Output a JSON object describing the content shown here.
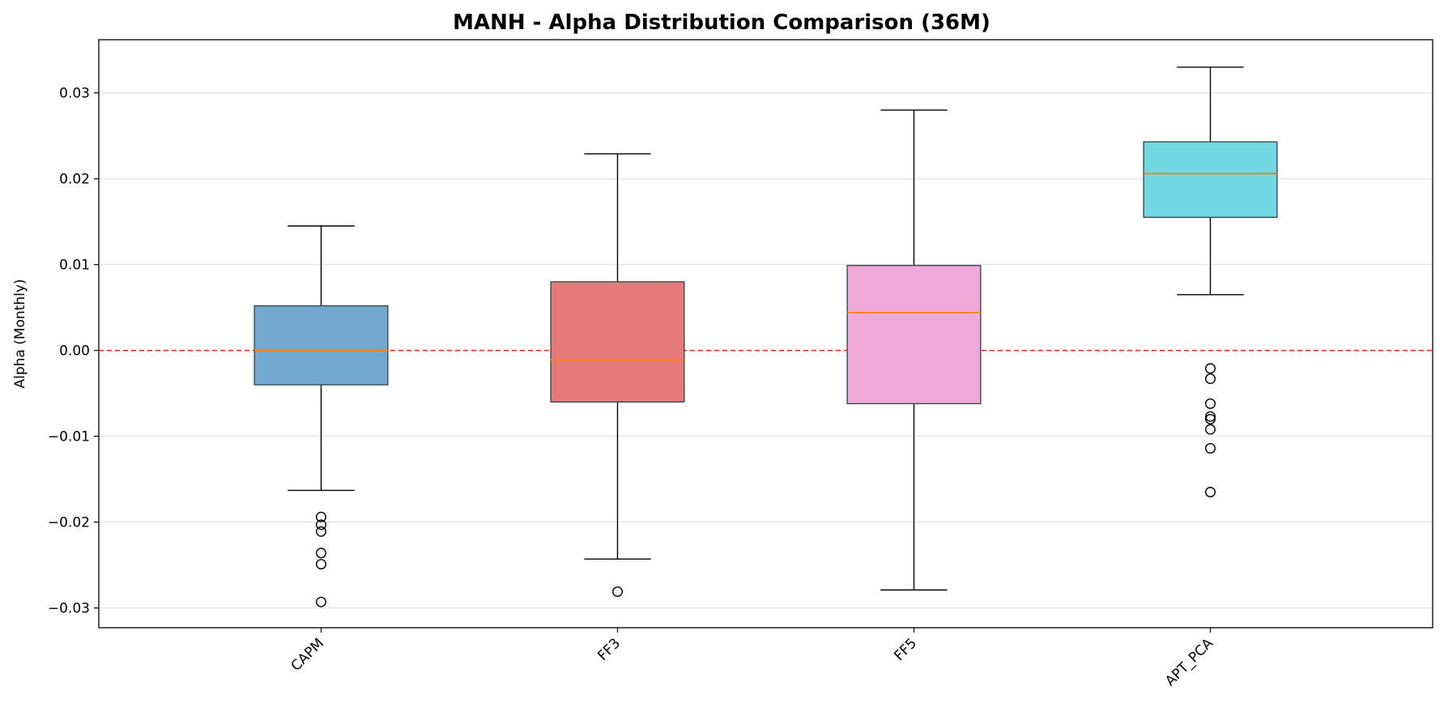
{
  "chart_data": {
    "type": "boxplot",
    "title": "MANH - Alpha Distribution Comparison (36M)",
    "xlabel": "",
    "ylabel": "Alpha (Monthly)",
    "ylim": [
      -0.0323,
      0.0362
    ],
    "yticks": [
      0.03,
      0.02,
      0.01,
      0.0,
      -0.01,
      -0.02,
      -0.03
    ],
    "ytick_labels": [
      "0.03",
      "0.02",
      "0.01",
      "0.00",
      "−0.01",
      "−0.02",
      "−0.03"
    ],
    "grid": "y",
    "reference_line": {
      "y": 0.0,
      "color": "#e8333a",
      "style": "dashed"
    },
    "categories": [
      "CAPM",
      "FF3",
      "FF5",
      "APT_PCA"
    ],
    "series": [
      {
        "name": "CAPM",
        "color": "#74a9cf",
        "whisker_low": -0.0163,
        "q1": -0.004,
        "median": 0.0,
        "q3": 0.0052,
        "whisker_high": 0.0145,
        "outliers": [
          -0.0194,
          -0.0203,
          -0.0211,
          -0.0236,
          -0.0249,
          -0.0293
        ]
      },
      {
        "name": "FF3",
        "color": "#e67a7a",
        "whisker_low": -0.0243,
        "q1": -0.006,
        "median": -0.0011,
        "q3": 0.008,
        "whisker_high": 0.0229,
        "outliers": [
          -0.0281
        ]
      },
      {
        "name": "FF5",
        "color": "#f0aad8",
        "whisker_low": -0.0279,
        "q1": -0.0062,
        "median": 0.0044,
        "q3": 0.0099,
        "whisker_high": 0.028,
        "outliers": []
      },
      {
        "name": "APT_PCA",
        "color": "#72d8e2",
        "whisker_low": 0.0065,
        "q1": 0.0155,
        "median": 0.0206,
        "q3": 0.0243,
        "whisker_high": 0.033,
        "outliers": [
          -0.0021,
          -0.0033,
          -0.0062,
          -0.0077,
          -0.008,
          -0.0092,
          -0.0114,
          -0.0165
        ]
      }
    ],
    "colors": {
      "median": "#ff7f0e",
      "edge": "#3b4a56",
      "grid": "#e0e0e0"
    }
  }
}
